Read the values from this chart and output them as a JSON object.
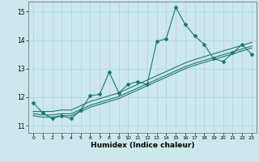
{
  "xlabel": "Humidex (Indice chaleur)",
  "xlim": [
    -0.5,
    23.5
  ],
  "ylim": [
    10.75,
    15.35
  ],
  "yticks": [
    11,
    12,
    13,
    14,
    15
  ],
  "xticks": [
    0,
    1,
    2,
    3,
    4,
    5,
    6,
    7,
    8,
    9,
    10,
    11,
    12,
    13,
    14,
    15,
    16,
    17,
    18,
    19,
    20,
    21,
    22,
    23
  ],
  "bg_color": "#cce8ec",
  "grid_color": "#aad4d8",
  "line_color": "#1a7a6e",
  "line1_x": [
    0,
    1,
    2,
    3,
    4,
    5,
    6,
    7,
    8,
    9,
    10,
    11,
    12,
    13,
    14,
    15,
    16,
    17,
    18,
    19,
    20,
    21,
    22,
    23
  ],
  "line1_y": [
    11.8,
    11.45,
    11.25,
    11.35,
    11.25,
    11.55,
    12.05,
    12.1,
    12.88,
    12.15,
    12.45,
    12.55,
    12.45,
    13.95,
    14.05,
    15.15,
    14.55,
    14.15,
    13.85,
    13.35,
    13.25,
    13.55,
    13.85,
    13.5
  ],
  "line2_x": [
    0,
    1,
    2,
    3,
    4,
    5,
    6,
    7,
    8,
    9,
    10,
    11,
    12,
    13,
    14,
    15,
    16,
    17,
    18,
    19,
    20,
    21,
    22,
    23
  ],
  "line2_y": [
    11.5,
    11.5,
    11.5,
    11.55,
    11.55,
    11.7,
    11.85,
    11.95,
    12.05,
    12.15,
    12.3,
    12.45,
    12.6,
    12.75,
    12.9,
    13.05,
    13.2,
    13.32,
    13.42,
    13.52,
    13.62,
    13.72,
    13.82,
    13.92
  ],
  "line3_x": [
    0,
    1,
    2,
    3,
    4,
    5,
    6,
    7,
    8,
    9,
    10,
    11,
    12,
    13,
    14,
    15,
    16,
    17,
    18,
    19,
    20,
    21,
    22,
    23
  ],
  "line3_y": [
    11.35,
    11.3,
    11.3,
    11.35,
    11.35,
    11.5,
    11.65,
    11.75,
    11.85,
    11.95,
    12.1,
    12.25,
    12.4,
    12.55,
    12.7,
    12.85,
    13.0,
    13.12,
    13.22,
    13.32,
    13.42,
    13.52,
    13.62,
    13.72
  ],
  "line4_x": [
    0,
    1,
    2,
    3,
    4,
    5,
    6,
    7,
    8,
    9,
    10,
    11,
    12,
    13,
    14,
    15,
    16,
    17,
    18,
    19,
    20,
    21,
    22,
    23
  ],
  "line4_y": [
    11.42,
    11.38,
    11.38,
    11.42,
    11.42,
    11.57,
    11.72,
    11.82,
    11.92,
    12.02,
    12.17,
    12.32,
    12.47,
    12.62,
    12.77,
    12.92,
    13.07,
    13.19,
    13.29,
    13.39,
    13.49,
    13.59,
    13.69,
    13.79
  ]
}
